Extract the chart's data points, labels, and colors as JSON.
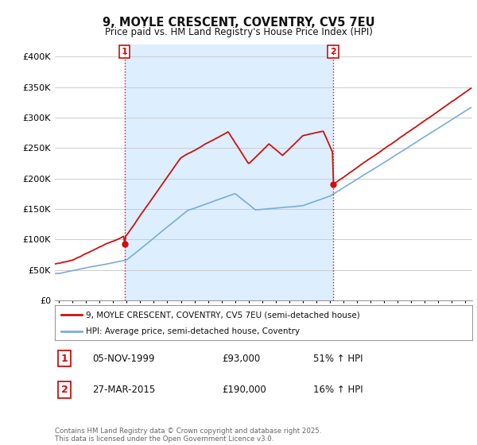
{
  "title": "9, MOYLE CRESCENT, COVENTRY, CV5 7EU",
  "subtitle": "Price paid vs. HM Land Registry's House Price Index (HPI)",
  "ylabel_ticks": [
    "£0",
    "£50K",
    "£100K",
    "£150K",
    "£200K",
    "£250K",
    "£300K",
    "£350K",
    "£400K"
  ],
  "ytick_values": [
    0,
    50000,
    100000,
    150000,
    200000,
    250000,
    300000,
    350000,
    400000
  ],
  "ylim": [
    0,
    420000
  ],
  "xlim_start": 1994.7,
  "xlim_end": 2025.5,
  "hpi_color": "#7aabdc",
  "price_color": "#cc1111",
  "vline_color": "#cc1111",
  "shade_color": "#ddeeff",
  "marker1_year": 1999.85,
  "marker2_year": 2015.23,
  "marker1_label": "1",
  "marker2_label": "2",
  "legend_line1": "9, MOYLE CRESCENT, COVENTRY, CV5 7EU (semi-detached house)",
  "legend_line2": "HPI: Average price, semi-detached house, Coventry",
  "note1_num": "1",
  "note1_date": "05-NOV-1999",
  "note1_price": "£93,000",
  "note1_hpi": "51% ↑ HPI",
  "note2_num": "2",
  "note2_date": "27-MAR-2015",
  "note2_price": "£190,000",
  "note2_hpi": "16% ↑ HPI",
  "footer": "Contains HM Land Registry data © Crown copyright and database right 2025.\nThis data is licensed under the Open Government Licence v3.0.",
  "background_color": "#ffffff",
  "grid_color": "#cccccc"
}
